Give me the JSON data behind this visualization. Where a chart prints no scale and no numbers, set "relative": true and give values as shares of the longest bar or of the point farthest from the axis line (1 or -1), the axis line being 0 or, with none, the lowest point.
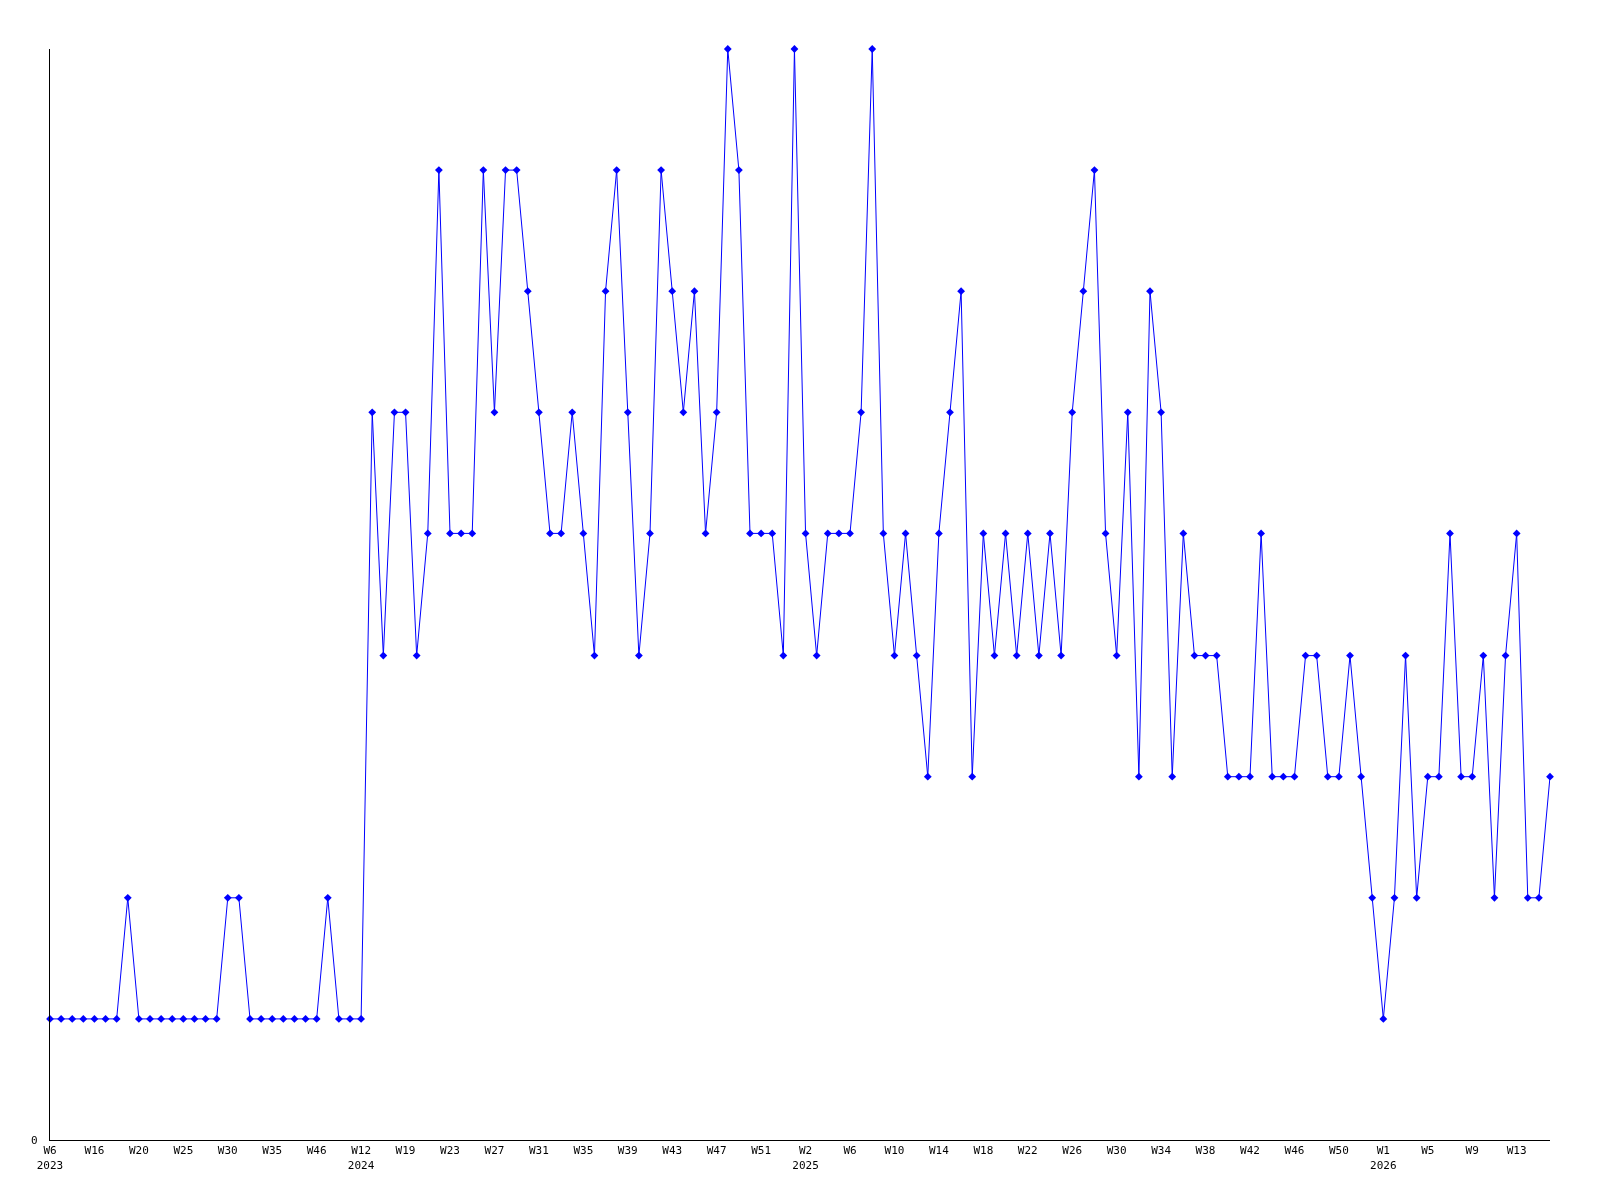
{
  "chart_data": {
    "type": "line",
    "relative": true,
    "color": "#0000ff",
    "marker": "diamond",
    "line_style": "solid",
    "categories": [
      "W6\n2023",
      null,
      null,
      null,
      "W16",
      null,
      null,
      null,
      "W20",
      null,
      null,
      null,
      "W25",
      null,
      null,
      null,
      "W30",
      null,
      null,
      null,
      "W35",
      null,
      null,
      null,
      "W46",
      null,
      null,
      null,
      "W12\n2024",
      null,
      null,
      null,
      "W19",
      null,
      null,
      null,
      "W23",
      null,
      null,
      null,
      "W27",
      null,
      null,
      null,
      "W31",
      null,
      null,
      null,
      "W35",
      null,
      null,
      null,
      "W39",
      null,
      null,
      null,
      "W43",
      null,
      null,
      null,
      "W47",
      null,
      null,
      null,
      "W51",
      null,
      null,
      null,
      "W2\n2025",
      null,
      null,
      null,
      "W6",
      null,
      null,
      null,
      "W10",
      null,
      null,
      null,
      "W14",
      null,
      null,
      null,
      "W18",
      null,
      null,
      null,
      "W22",
      null,
      null,
      null,
      "W26",
      null,
      null,
      null,
      "W30",
      null,
      null,
      null,
      "W34",
      null,
      null,
      null,
      "W38",
      null,
      null,
      null,
      "W42",
      null,
      null,
      null,
      "W46",
      null,
      null,
      null,
      "W50",
      null,
      null,
      null,
      "W1\n2026",
      null,
      null,
      null,
      "W5",
      null,
      null,
      null,
      "W9",
      null,
      null,
      null,
      "W13",
      null,
      null,
      null
    ],
    "values": [
      0.111,
      0.111,
      0.111,
      0.111,
      0.111,
      0.111,
      0.111,
      0.222,
      0.111,
      0.111,
      0.111,
      0.111,
      0.111,
      0.111,
      0.111,
      0.111,
      0.222,
      0.222,
      0.111,
      0.111,
      0.111,
      0.111,
      0.111,
      0.111,
      0.111,
      0.222,
      0.111,
      0.111,
      0.111,
      0.667,
      0.444,
      0.667,
      0.667,
      0.444,
      0.556,
      0.889,
      0.556,
      0.556,
      0.556,
      0.889,
      0.667,
      0.889,
      0.889,
      0.778,
      0.667,
      0.556,
      0.556,
      0.667,
      0.556,
      0.444,
      0.778,
      0.889,
      0.667,
      0.444,
      0.556,
      0.889,
      0.778,
      0.667,
      0.778,
      0.556,
      0.667,
      1,
      0.889,
      0.556,
      0.556,
      0.556,
      0.444,
      1,
      0.556,
      0.444,
      0.556,
      0.556,
      0.556,
      0.667,
      1,
      0.556,
      0.444,
      0.556,
      0.444,
      0.333,
      0.556,
      0.667,
      0.778,
      0.333,
      0.556,
      0.444,
      0.556,
      0.444,
      0.556,
      0.444,
      0.556,
      0.444,
      0.667,
      0.778,
      0.889,
      0.556,
      0.444,
      0.667,
      0.333,
      0.778,
      0.667,
      0.333,
      0.556,
      0.444,
      0.444,
      0.444,
      0.333,
      0.333,
      0.333,
      0.556,
      0.333,
      0.333,
      0.333,
      0.444,
      0.444,
      0.333,
      0.333,
      0.444,
      0.333,
      0.222,
      0.111,
      0.222,
      0.444,
      0.222,
      0.333,
      0.333,
      0.556,
      0.333,
      0.333,
      0.444,
      0.222,
      0.444,
      0.556,
      0.222,
      0.222,
      0.333
    ],
    "annotations": [
      "0"
    ]
  }
}
